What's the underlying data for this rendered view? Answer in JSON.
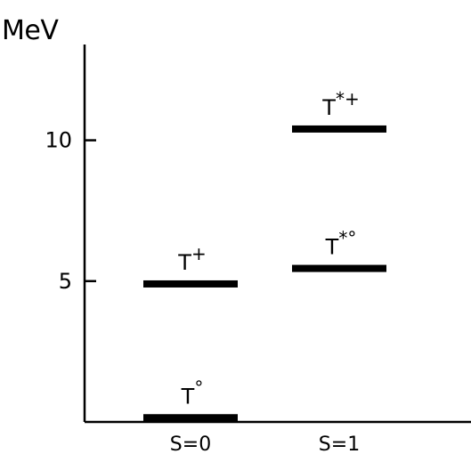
{
  "chart_data": {
    "type": "scatter",
    "title": "",
    "xlabel": "",
    "ylabel": "MeV",
    "ylim": [
      0,
      13.4
    ],
    "grid": false,
    "yticks": [
      {
        "value": 5,
        "label": "5"
      },
      {
        "value": 10,
        "label": "10"
      }
    ],
    "categories": [
      "S=0",
      "S=1"
    ],
    "levels": [
      {
        "category": "S=0",
        "value": 0.15,
        "label": "T",
        "sup": "°"
      },
      {
        "category": "S=0",
        "value": 4.9,
        "label": "T",
        "sup": "+"
      },
      {
        "category": "S=1",
        "value": 5.45,
        "label": "T",
        "sup": "*°"
      },
      {
        "category": "S=1",
        "value": 10.4,
        "label": "T",
        "sup": "*+"
      }
    ]
  }
}
